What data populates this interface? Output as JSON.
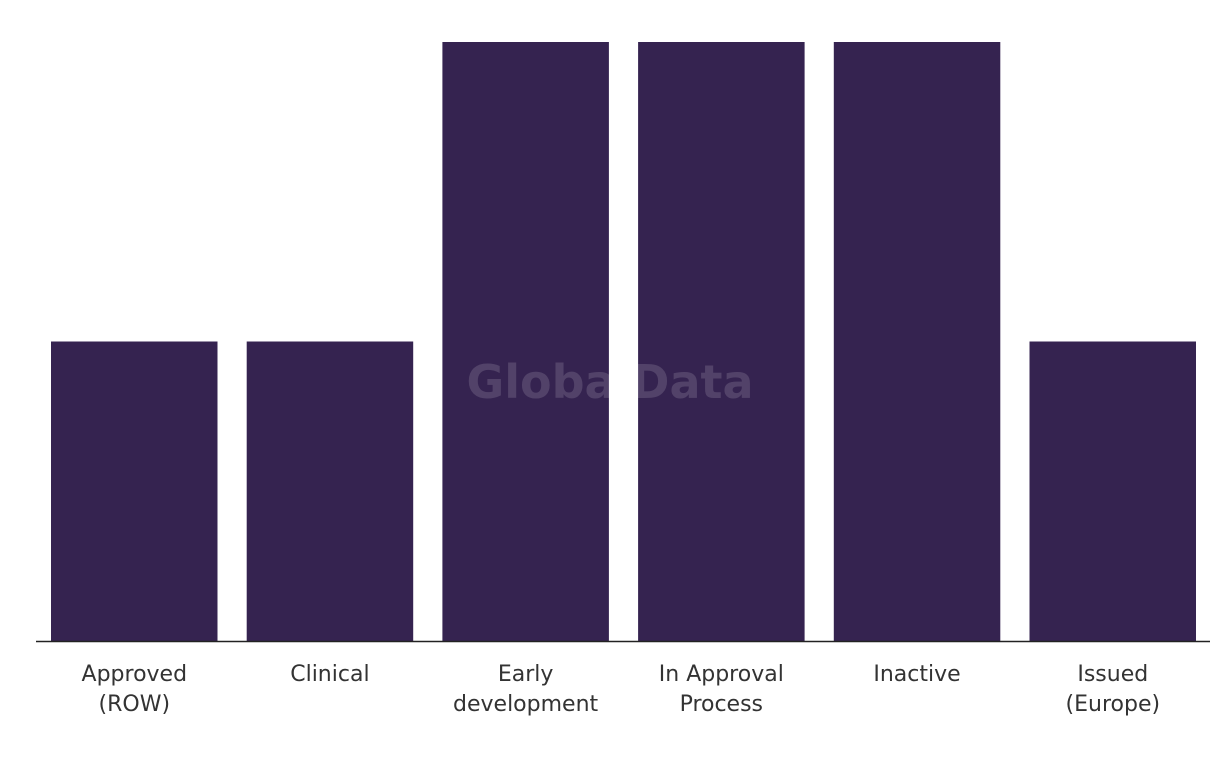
{
  "chart_data": {
    "type": "bar",
    "categories": [
      [
        "Approved",
        "(ROW)"
      ],
      [
        "Clinical"
      ],
      [
        "Early",
        "development"
      ],
      [
        "In Approval",
        "Process"
      ],
      [
        "Inactive"
      ],
      [
        "Issued",
        "(Europe)"
      ]
    ],
    "values": [
      1,
      1,
      2,
      2,
      2,
      1
    ],
    "ylim": [
      0,
      2
    ],
    "grid": false,
    "legend": "none",
    "bar_color": "#352350",
    "axis_color": "#222222"
  },
  "watermark": "GlobalData"
}
